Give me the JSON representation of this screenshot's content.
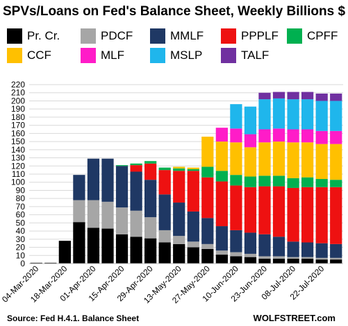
{
  "title": "SPVs/Loans  on Fed's Balance Sheet, Weekly Billions $",
  "source": "Source: Fed H.4.1. Balance Sheet",
  "brand": "WOLFSTREET.com",
  "chart_data": {
    "type": "bar",
    "stacked": true,
    "title": "SPVs/Loans  on Fed's Balance Sheet, Weekly Billions $",
    "xlabel": "",
    "ylabel": "",
    "ylim": [
      0,
      220
    ],
    "yticks": [
      0,
      10,
      20,
      30,
      40,
      50,
      60,
      70,
      80,
      90,
      100,
      110,
      120,
      130,
      140,
      150,
      160,
      170,
      180,
      190,
      200,
      210,
      220
    ],
    "grid": true,
    "legend_position": "top",
    "categories": [
      "04-Mar-2020",
      "11-Mar-2020",
      "18-Mar-2020",
      "25-Mar-2020",
      "01-Apr-2020",
      "08-Apr-2020",
      "15-Apr-2020",
      "22-Apr-2020",
      "29-Apr-2020",
      "06-May-2020",
      "13-May-2020",
      "20-May-2020",
      "27-May-2020",
      "03-Jun-2020",
      "10-Jun-2020",
      "17-Jun-2020",
      "23-Jun-2020",
      "01-Jul-2020",
      "08-Jul-2020",
      "15-Jul-2020",
      "22-Jul-2020",
      "29-Jul-2020"
    ],
    "tick_labels": [
      "04-Mar-2020",
      "",
      "18-Mar-2020",
      "",
      "01-Apr-2020",
      "",
      "15-Apr-2020",
      "",
      "29-Apr-2020",
      "",
      "13-May-2020",
      "",
      "27-May-2020",
      "",
      "10-Jun-2020",
      "",
      "23-Jun-2020",
      "",
      "08-Jul-2020",
      "",
      "22-Jul-2020",
      ""
    ],
    "series": [
      {
        "name": "Pr. Cr.",
        "color": "#000000",
        "values": [
          1,
          1,
          28,
          51,
          44,
          43,
          36,
          33,
          31,
          26,
          24,
          20,
          18,
          11,
          9,
          8,
          6,
          6,
          6,
          6,
          5,
          5
        ]
      },
      {
        "name": "PDCF",
        "color": "#a6a6a6",
        "values": [
          0,
          0,
          0,
          27,
          34,
          33,
          33,
          32,
          26,
          15,
          10,
          7,
          6,
          5,
          5,
          4,
          3,
          3,
          2,
          2,
          2,
          2
        ]
      },
      {
        "name": "MMLF",
        "color": "#1f3864",
        "values": [
          0,
          0,
          0,
          31,
          51,
          53,
          51,
          48,
          46,
          44,
          41,
          37,
          32,
          30,
          27,
          26,
          27,
          24,
          19,
          18,
          18,
          17
        ]
      },
      {
        "name": "PPPLF",
        "color": "#ee1111",
        "values": [
          0,
          0,
          0,
          0,
          0,
          0,
          0,
          8,
          20,
          30,
          39,
          50,
          50,
          55,
          55,
          56,
          59,
          62,
          66,
          68,
          69,
          70
        ]
      },
      {
        "name": "CPFF",
        "color": "#00b050",
        "values": [
          0,
          0,
          0,
          0,
          0,
          0,
          1,
          2,
          3,
          3,
          3,
          2,
          13,
          13,
          13,
          13,
          13,
          13,
          12,
          12,
          10,
          9
        ]
      },
      {
        "name": "CCF",
        "color": "#ffc000",
        "values": [
          0,
          0,
          0,
          0,
          0,
          0,
          0,
          0,
          0,
          0,
          2,
          2,
          37,
          36,
          40,
          36,
          41,
          42,
          44,
          43,
          43,
          44
        ]
      },
      {
        "name": "MLF",
        "color": "#ff1cc8",
        "values": [
          0,
          0,
          0,
          0,
          0,
          0,
          0,
          0,
          0,
          0,
          0,
          0,
          0,
          17,
          17,
          16,
          16,
          16,
          16,
          16,
          16,
          16
        ]
      },
      {
        "name": "MSLP",
        "color": "#1fb6ec",
        "values": [
          0,
          0,
          0,
          0,
          0,
          0,
          0,
          0,
          0,
          0,
          0,
          0,
          0,
          0,
          30,
          34,
          37,
          37,
          37,
          37,
          37,
          37
        ]
      },
      {
        "name": "TALF",
        "color": "#7030a0",
        "values": [
          0,
          0,
          0,
          0,
          0,
          0,
          0,
          0,
          0,
          0,
          0,
          0,
          0,
          0,
          0,
          0,
          8,
          8,
          9,
          9,
          9,
          9
        ]
      }
    ]
  }
}
